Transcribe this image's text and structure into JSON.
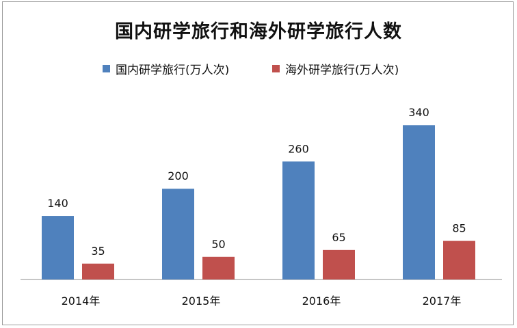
{
  "chart_data": {
    "type": "bar",
    "title": "国内研学旅行和海外研学旅行人数",
    "categories": [
      "2014年",
      "2015年",
      "2016年",
      "2017年"
    ],
    "series": [
      {
        "name": "国内研学旅行(万人次)",
        "values": [
          140,
          200,
          260,
          340
        ],
        "color": "#4f81bd"
      },
      {
        "name": "海外研学旅行(万人次)",
        "values": [
          35,
          50,
          65,
          85
        ],
        "color": "#c0504d"
      }
    ],
    "ylim": [
      0,
      370
    ],
    "grid": false,
    "legend_position": "top",
    "data_labels": true
  }
}
